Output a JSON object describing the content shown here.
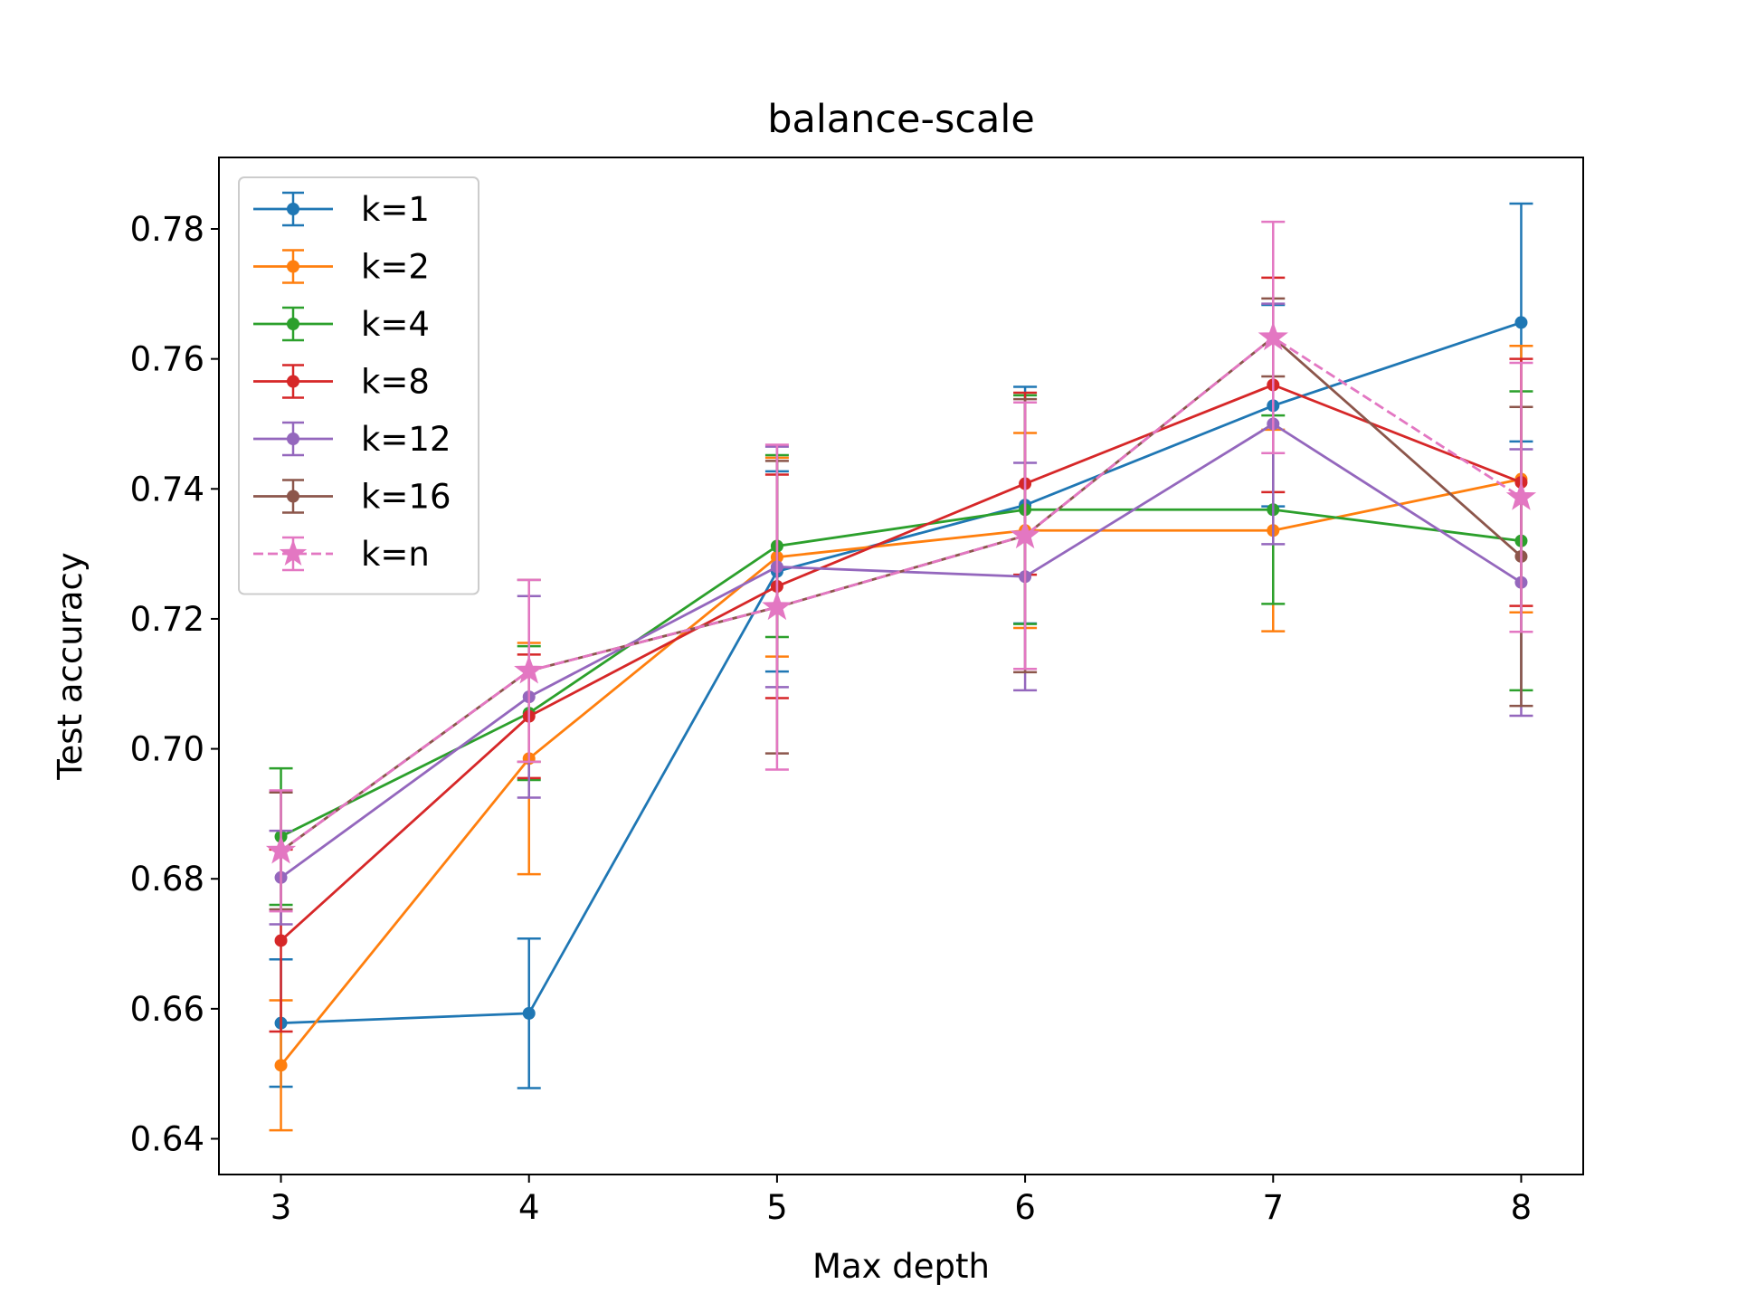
{
  "chart_data": {
    "type": "line",
    "title": "balance-scale",
    "xlabel": "Max depth",
    "ylabel": "Test accuracy",
    "x": [
      3,
      4,
      5,
      6,
      7,
      8
    ],
    "xlim": [
      2.75,
      8.25
    ],
    "ylim": [
      0.6345,
      0.791
    ],
    "xticks": [
      3,
      4,
      5,
      6,
      7,
      8
    ],
    "yticks": [
      0.64,
      0.66,
      0.68,
      0.7,
      0.72,
      0.74,
      0.76,
      0.78
    ],
    "ytick_labels": [
      "0.64",
      "0.66",
      "0.68",
      "0.70",
      "0.72",
      "0.74",
      "0.76",
      "0.78"
    ],
    "grid": false,
    "legend": "top-left",
    "series": [
      {
        "name": "k=1",
        "color": "#1f77b4",
        "marker": "circle",
        "dashed": false,
        "values": [
          0.6578,
          0.6593,
          0.7273,
          0.7375,
          0.7528,
          0.7656
        ],
        "errors": [
          0.0098,
          0.0115,
          0.0154,
          0.0182,
          0.0155,
          0.0183
        ]
      },
      {
        "name": "k=2",
        "color": "#ff7f0e",
        "marker": "circle",
        "dashed": false,
        "values": [
          0.6513,
          0.6985,
          0.7295,
          0.7336,
          0.7336,
          0.7415
        ],
        "errors": [
          0.01,
          0.0178,
          0.0153,
          0.015,
          0.0155,
          0.0205
        ]
      },
      {
        "name": "k=4",
        "color": "#2ca02c",
        "marker": "circle",
        "dashed": false,
        "values": [
          0.6865,
          0.7055,
          0.7312,
          0.7368,
          0.7368,
          0.732
        ],
        "errors": [
          0.0105,
          0.0103,
          0.014,
          0.0176,
          0.0145,
          0.023
        ]
      },
      {
        "name": "k=8",
        "color": "#d62728",
        "marker": "circle",
        "dashed": false,
        "values": [
          0.6705,
          0.705,
          0.725,
          0.7408,
          0.756,
          0.741
        ],
        "errors": [
          0.014,
          0.0095,
          0.0172,
          0.014,
          0.0165,
          0.019
        ]
      },
      {
        "name": "k=12",
        "color": "#9467bd",
        "marker": "circle",
        "dashed": false,
        "values": [
          0.6802,
          0.708,
          0.728,
          0.7265,
          0.75,
          0.7256
        ],
        "errors": [
          0.0072,
          0.0155,
          0.0185,
          0.0175,
          0.0185,
          0.0205
        ]
      },
      {
        "name": "k=16",
        "color": "#8c564b",
        "marker": "circle",
        "dashed": false,
        "values": [
          0.6843,
          0.712,
          0.7218,
          0.7328,
          0.7633,
          0.7296
        ],
        "errors": [
          0.009,
          0.014,
          0.0225,
          0.021,
          0.006,
          0.023
        ]
      },
      {
        "name": "k=n",
        "color": "#e377c2",
        "marker": "star",
        "dashed": true,
        "values": [
          0.6843,
          0.712,
          0.7218,
          0.7328,
          0.7633,
          0.7387
        ],
        "errors": [
          0.0093,
          0.014,
          0.025,
          0.0205,
          0.0178,
          0.0207
        ]
      }
    ]
  }
}
